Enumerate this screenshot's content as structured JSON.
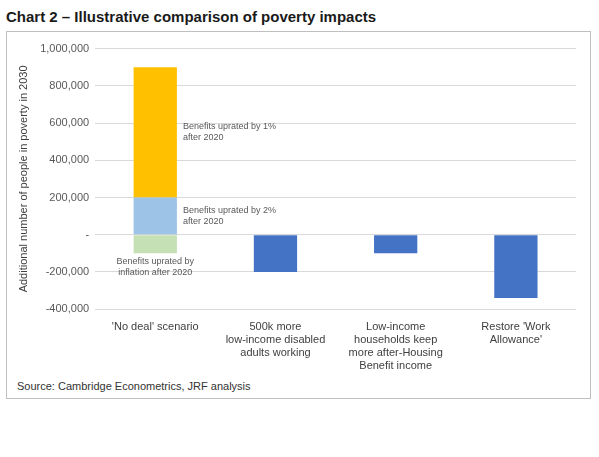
{
  "chart_data": {
    "type": "bar",
    "title": "Chart 2 – Illustrative comparison of poverty impacts",
    "y_label": "Additional number of people in poverty in 2030",
    "source": "Source: Cambridge Econometrics, JRF analysis",
    "categories": [
      "'No deal' scenario",
      "500k more low-income disabled adults working",
      "Low-income households keep more after-Housing Benefit income",
      "Restore 'Work Allowance'"
    ],
    "series": [
      {
        "name": "Benefits uprated by 2% after 2020",
        "color": "#9DC3E6",
        "values": [
          200000,
          null,
          null,
          null
        ]
      },
      {
        "name": "Benefits uprated by 1% after 2020",
        "color": "#FFC000",
        "values": [
          700000,
          null,
          null,
          null
        ]
      },
      {
        "name": "Benefits uprated by inflation after 2020",
        "color": "#C5E0B4",
        "values": [
          -100000,
          null,
          null,
          null
        ]
      },
      {
        "color": "#4472C4",
        "values": [
          null,
          -200000,
          -100000,
          -340000
        ]
      }
    ],
    "stacked": true,
    "ylim": [
      -400000,
      1000000
    ],
    "yticks": [
      {
        "value": -400000,
        "label": "-400,000"
      },
      {
        "value": -200000,
        "label": "-200,000"
      },
      {
        "value": 0,
        "label": "-"
      },
      {
        "value": 200000,
        "label": "200,000"
      },
      {
        "value": 400000,
        "label": "400,000"
      },
      {
        "value": 600000,
        "label": "600,000"
      },
      {
        "value": 800000,
        "label": "800,000"
      },
      {
        "value": 1000000,
        "label": "1,000,000"
      }
    ],
    "grid": true
  }
}
